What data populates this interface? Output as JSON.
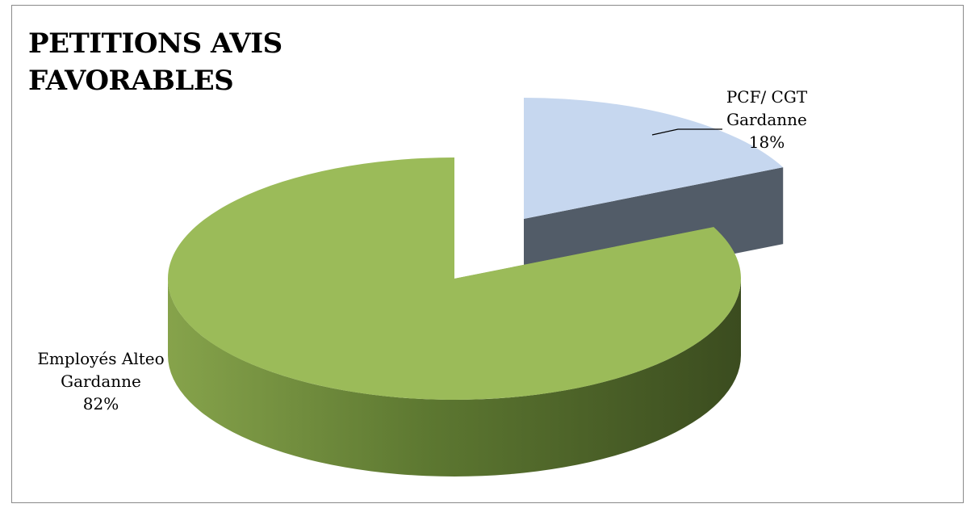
{
  "chart_data": {
    "type": "pie",
    "title": "PETITIONS AVIS FAVORABLES",
    "three_d": true,
    "exploded": true,
    "slices": [
      {
        "label_lines": [
          "PCF/ CGT",
          "Gardanne"
        ],
        "percent_label": "18%",
        "value": 18,
        "color": "#c6d7ef",
        "side_color": "#525c68"
      },
      {
        "label_lines": [
          "Employés Alteo",
          "Gardanne"
        ],
        "percent_label": "82%",
        "value": 82,
        "color": "#9bbb59",
        "side_color": "#5a7330"
      }
    ]
  }
}
